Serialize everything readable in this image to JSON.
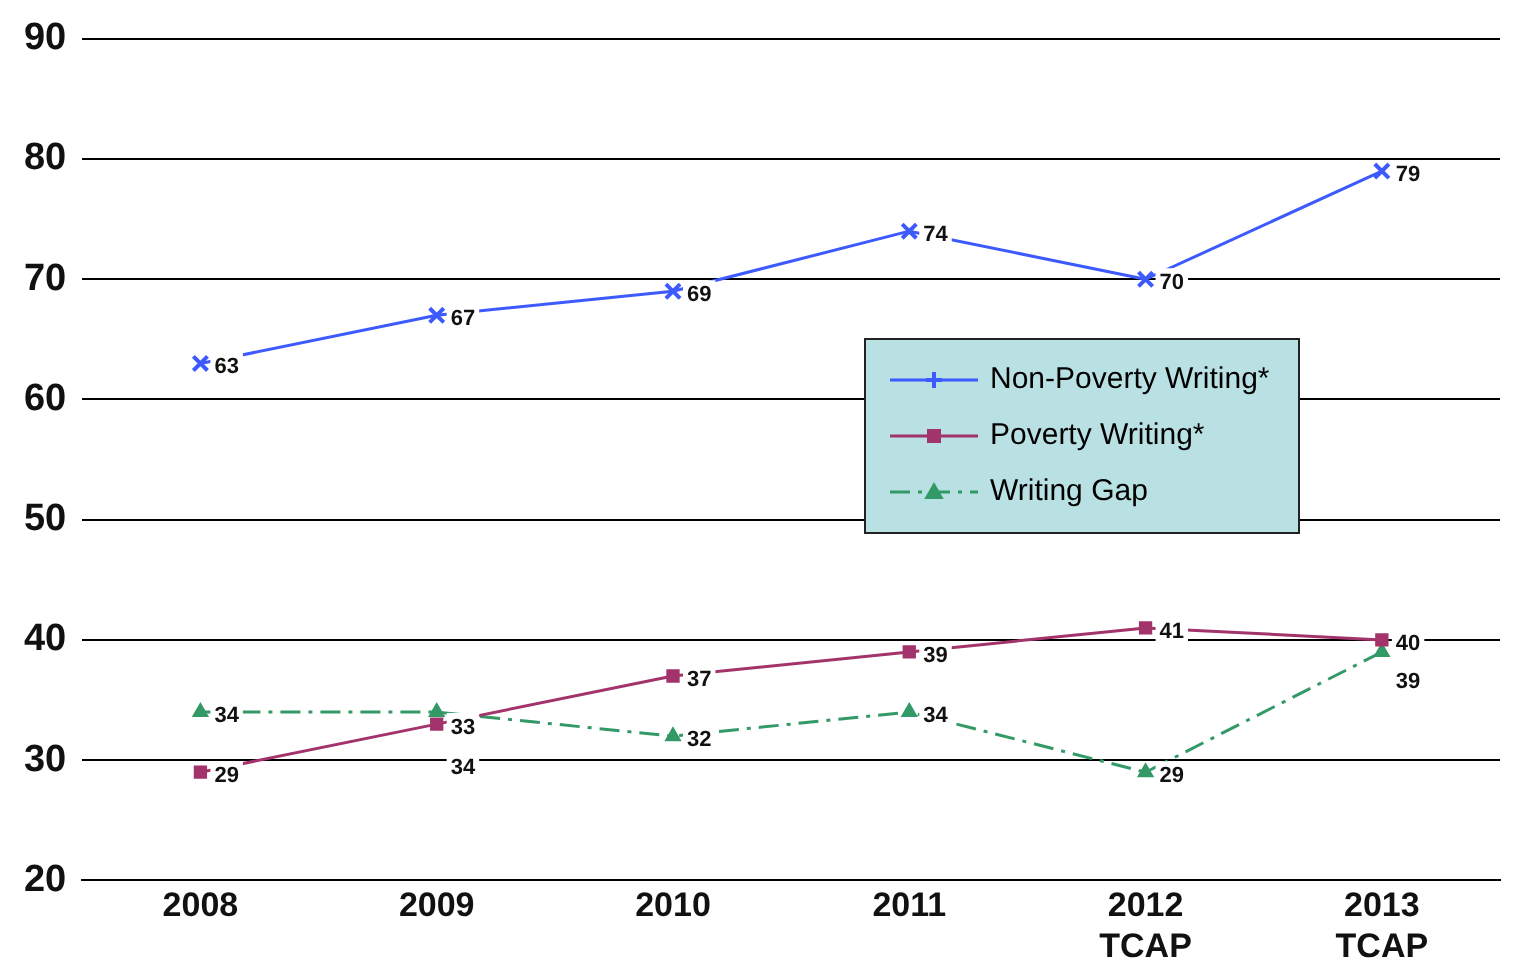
{
  "chart_data": {
    "type": "line",
    "categories": [
      "2008",
      "2009",
      "2010",
      "2011",
      "2012\nTCAP",
      "2013\nTCAP"
    ],
    "series": [
      {
        "name": "Non-Poverty Writing*",
        "color": "#3d5afe",
        "marker": "cross",
        "line_style": "solid",
        "values": [
          63,
          67,
          69,
          74,
          70,
          79
        ]
      },
      {
        "name": "Poverty Writing*",
        "color": "#a3336b",
        "marker": "square",
        "line_style": "solid",
        "values": [
          29,
          33,
          37,
          39,
          41,
          40
        ]
      },
      {
        "name": "Writing Gap",
        "color": "#339966",
        "marker": "triangle",
        "line_style": "dashed",
        "values": [
          34,
          34,
          32,
          34,
          29,
          39
        ]
      }
    ],
    "ylim": [
      20,
      90
    ],
    "yticks": [
      20,
      30,
      40,
      50,
      60,
      70,
      80,
      90
    ],
    "grid": "y",
    "legend": "right",
    "data_labels": true
  }
}
